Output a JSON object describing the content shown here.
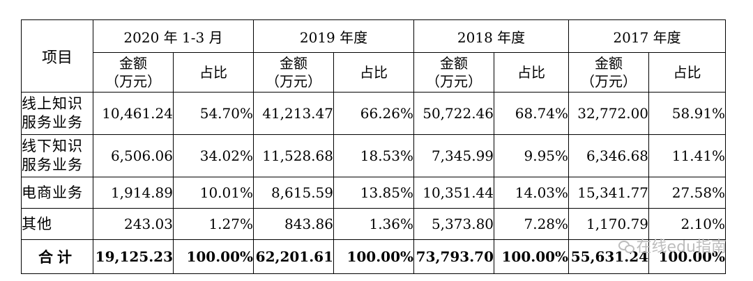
{
  "table": {
    "item_header": "项目",
    "periods": [
      "2020 年 1-3 月",
      "2019 年度",
      "2018 年度",
      "2017 年度"
    ],
    "amount_header": [
      "金额",
      "（万元）"
    ],
    "ratio_header": "占比",
    "rows": [
      {
        "label": [
          "线上知识",
          "服务业务"
        ],
        "values": [
          "10,461.24",
          "54.70%",
          "41,213.47",
          "66.26%",
          "50,722.46",
          "68.74%",
          "32,772.00",
          "58.91%"
        ]
      },
      {
        "label": [
          "线下知识",
          "服务业务"
        ],
        "values": [
          "6,506.06",
          "34.02%",
          "11,528.68",
          "18.53%",
          "7,345.99",
          "9.95%",
          "6,346.68",
          "11.41%"
        ]
      },
      {
        "label": [
          "电商业务"
        ],
        "values": [
          "1,914.89",
          "10.01%",
          "8,615.59",
          "13.85%",
          "10,351.44",
          "14.03%",
          "15,341.77",
          "27.58%"
        ]
      },
      {
        "label": [
          "其他"
        ],
        "values": [
          "243.03",
          "1.27%",
          "843.86",
          "1.36%",
          "5,373.80",
          "7.28%",
          "1,170.79",
          "2.10%"
        ]
      }
    ],
    "total": {
      "label": "合计",
      "values": [
        "19,125.23",
        "100.00%",
        "62,201.61",
        "100.00%",
        "73,793.70",
        "100.00%",
        "55,631.24",
        "100.00%"
      ]
    }
  },
  "watermark": {
    "text": "在线edu指南",
    "icon": "wechat-icon"
  }
}
